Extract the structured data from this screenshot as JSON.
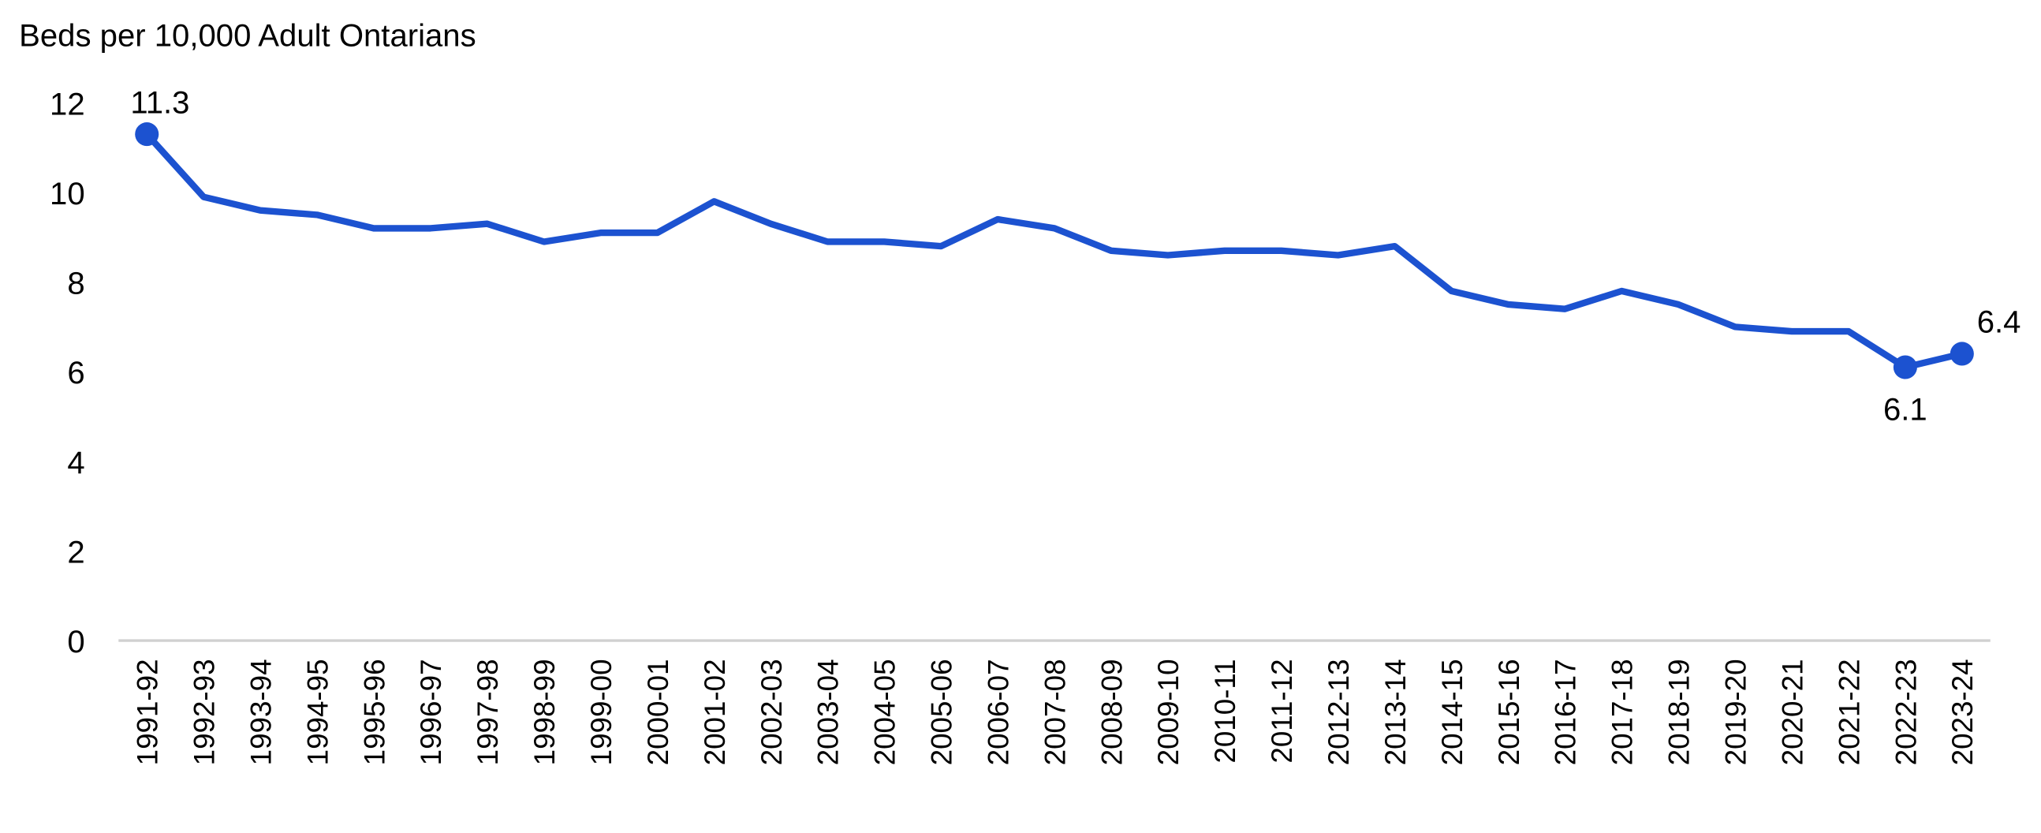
{
  "chart_data": {
    "type": "line",
    "title": "Beds per 10,000 Adult Ontarians",
    "categories": [
      "1991-92",
      "1992-93",
      "1993-94",
      "1994-95",
      "1995-96",
      "1996-97",
      "1997-98",
      "1998-99",
      "1999-00",
      "2000-01",
      "2001-02",
      "2002-03",
      "2003-04",
      "2004-05",
      "2005-06",
      "2006-07",
      "2007-08",
      "2008-09",
      "2009-10",
      "2010-11",
      "2011-12",
      "2012-13",
      "2013-14",
      "2014-15",
      "2015-16",
      "2016-17",
      "2017-18",
      "2018-19",
      "2019-20",
      "2020-21",
      "2021-22",
      "2022-23",
      "2023-24"
    ],
    "values": [
      11.3,
      9.9,
      9.6,
      9.5,
      9.2,
      9.2,
      9.3,
      8.9,
      9.1,
      9.1,
      9.8,
      9.3,
      8.9,
      8.9,
      8.8,
      9.4,
      9.2,
      8.7,
      8.6,
      8.7,
      8.7,
      8.6,
      8.8,
      7.8,
      7.5,
      7.4,
      7.8,
      7.5,
      7.0,
      6.9,
      6.9,
      6.1,
      6.4
    ],
    "color": "#1c52d0",
    "labeled_points": [
      0,
      31,
      32
    ],
    "ylim": [
      0,
      12
    ],
    "yticks": [
      0,
      2,
      4,
      6,
      8,
      10,
      12
    ],
    "grid": false
  }
}
